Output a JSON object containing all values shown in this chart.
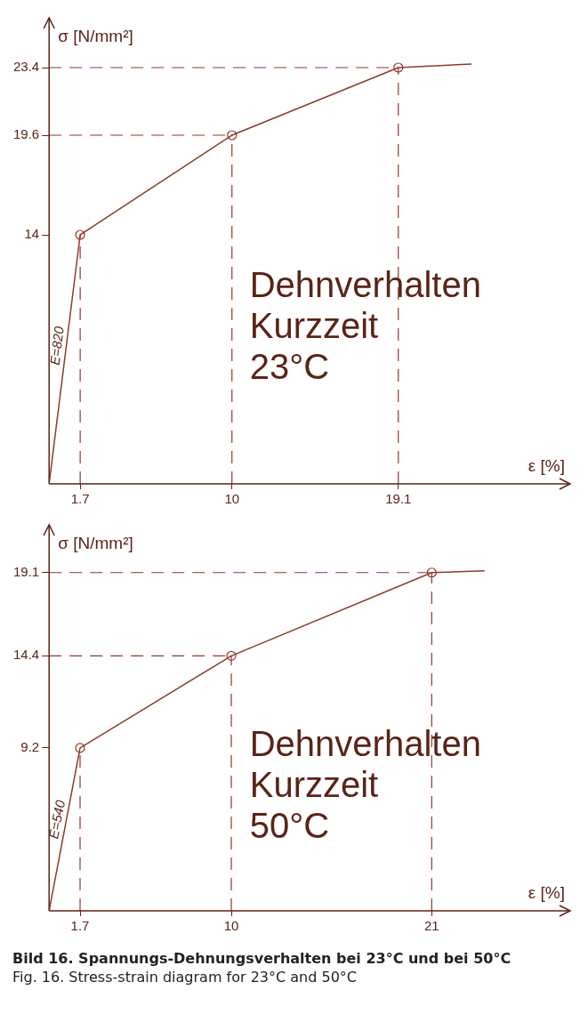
{
  "chart_data": [
    {
      "type": "line",
      "xlabel": "ε [%]",
      "ylabel": "σ [N/mm²]",
      "xlim": [
        0,
        28.5
      ],
      "ylim": [
        0,
        26.2
      ],
      "xticks": [
        1.7,
        10,
        19.1
      ],
      "yticks": [
        14,
        19.6,
        23.4
      ],
      "grid": false,
      "series": [
        {
          "type": "line",
          "color": "#8c3b2b",
          "marker": "none",
          "x": [
            0,
            1.7,
            10,
            19.1,
            23.1
          ],
          "values": [
            0,
            14,
            19.6,
            23.4,
            23.6
          ]
        },
        {
          "type": "scatter",
          "color": "#8c3b2b",
          "marker": "circle",
          "x": [
            1.7,
            10,
            19.1
          ],
          "values": [
            14,
            19.6,
            23.4
          ]
        }
      ],
      "ref_lines": [
        {
          "axis": "y",
          "value": 19.6,
          "line_style": "dashed"
        },
        {
          "axis": "y",
          "value": 23.4,
          "line_style": "dashed"
        },
        {
          "axis": "x",
          "value": 1.7,
          "line_style": "dashed"
        },
        {
          "axis": "x",
          "value": 10,
          "line_style": "dashed"
        },
        {
          "axis": "x",
          "value": 19.1,
          "line_style": "dashed"
        }
      ],
      "annotations": [
        "E=820",
        "Dehnverhalten",
        "Kurzzeit",
        "23°C"
      ]
    },
    {
      "type": "line",
      "xlabel": "ε [%]",
      "ylabel": "σ [N/mm²]",
      "xlim": [
        0,
        28.6
      ],
      "ylim": [
        0,
        21.8
      ],
      "xticks": [
        1.7,
        10,
        21
      ],
      "yticks": [
        9.2,
        14.4,
        19.1
      ],
      "grid": false,
      "series": [
        {
          "type": "line",
          "color": "#8c3b2b",
          "marker": "none",
          "x": [
            0,
            1.7,
            10,
            21,
            23.9
          ],
          "values": [
            0,
            9.2,
            14.4,
            19.1,
            19.2
          ]
        },
        {
          "type": "scatter",
          "color": "#8c3b2b",
          "marker": "circle",
          "x": [
            1.7,
            10,
            21
          ],
          "values": [
            9.2,
            14.4,
            19.1
          ]
        }
      ],
      "ref_lines": [
        {
          "axis": "y",
          "value": 14.4,
          "line_style": "dashed"
        },
        {
          "axis": "y",
          "value": 19.1,
          "line_style": "dashed"
        },
        {
          "axis": "x",
          "value": 1.7,
          "line_style": "dashed"
        },
        {
          "axis": "x",
          "value": 10,
          "line_style": "dashed"
        },
        {
          "axis": "x",
          "value": 21,
          "line_style": "dashed"
        }
      ],
      "annotations": [
        "E=540",
        "Dehnverhalten",
        "Kurzzeit",
        "50°C",
        "Bild 16. Spannungs-Dehnungsverhalten bei 23°C und bei 50°C",
        "Fig. 16. Stress-strain diagram for 23°C and 50°C"
      ]
    }
  ]
}
